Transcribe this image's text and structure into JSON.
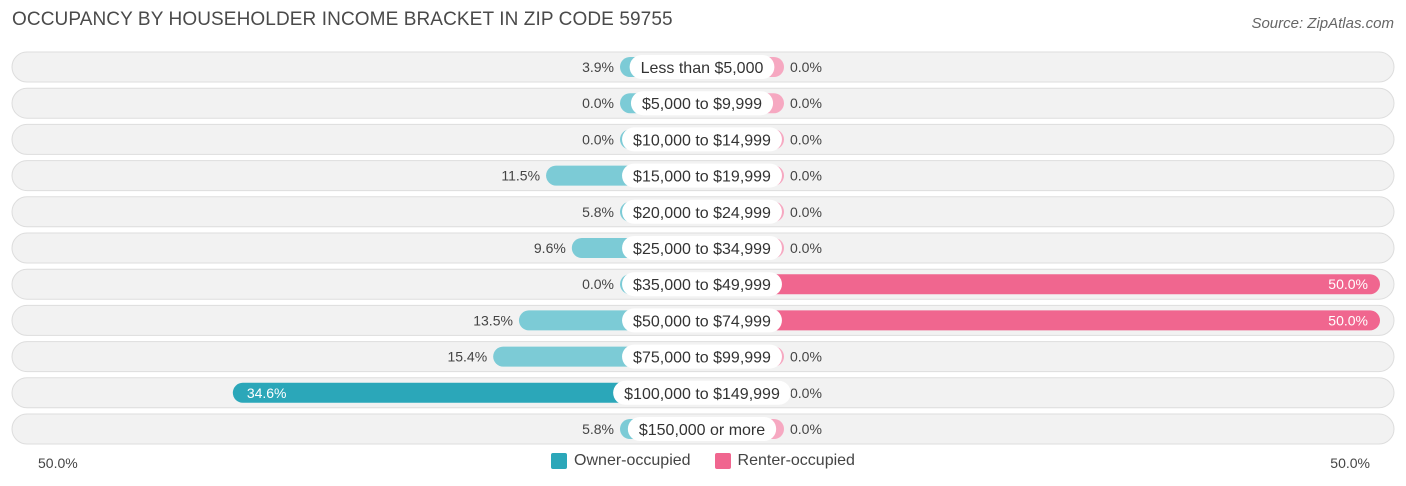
{
  "header": {
    "title": "OCCUPANCY BY HOUSEHOLDER INCOME BRACKET IN ZIP CODE 59755",
    "source": "Source: ZipAtlas.com"
  },
  "colors": {
    "owner": "#2ba7b9",
    "owner_light": "#7ccbd6",
    "renter": "#f0668f",
    "renter_light": "#f6a8c1",
    "row_bg": "#f2f2f2",
    "row_border": "#dddddd"
  },
  "chart_data": {
    "type": "bar",
    "orientation": "diverging-horizontal",
    "categories": [
      "Less than $5,000",
      "$5,000 to $9,999",
      "$10,000 to $14,999",
      "$15,000 to $19,999",
      "$20,000 to $24,999",
      "$25,000 to $34,999",
      "$35,000 to $49,999",
      "$50,000 to $74,999",
      "$75,000 to $99,999",
      "$100,000 to $149,999",
      "$150,000 or more"
    ],
    "series": [
      {
        "name": "Owner-occupied",
        "values": [
          3.9,
          0.0,
          0.0,
          11.5,
          5.8,
          9.6,
          0.0,
          13.5,
          15.4,
          34.6,
          5.8
        ],
        "labels": [
          "3.9%",
          "0.0%",
          "0.0%",
          "11.5%",
          "5.8%",
          "9.6%",
          "0.0%",
          "13.5%",
          "15.4%",
          "34.6%",
          "5.8%"
        ]
      },
      {
        "name": "Renter-occupied",
        "values": [
          0.0,
          0.0,
          0.0,
          0.0,
          0.0,
          0.0,
          50.0,
          50.0,
          0.0,
          0.0,
          0.0
        ],
        "labels": [
          "0.0%",
          "0.0%",
          "0.0%",
          "0.0%",
          "0.0%",
          "0.0%",
          "50.0%",
          "50.0%",
          "0.0%",
          "0.0%",
          "0.0%"
        ]
      }
    ],
    "xlim": [
      -50,
      50
    ],
    "axis_labels": {
      "left": "50.0%",
      "right": "50.0%"
    },
    "legend": [
      "Owner-occupied",
      "Renter-occupied"
    ],
    "legend_position": "bottom-center"
  }
}
